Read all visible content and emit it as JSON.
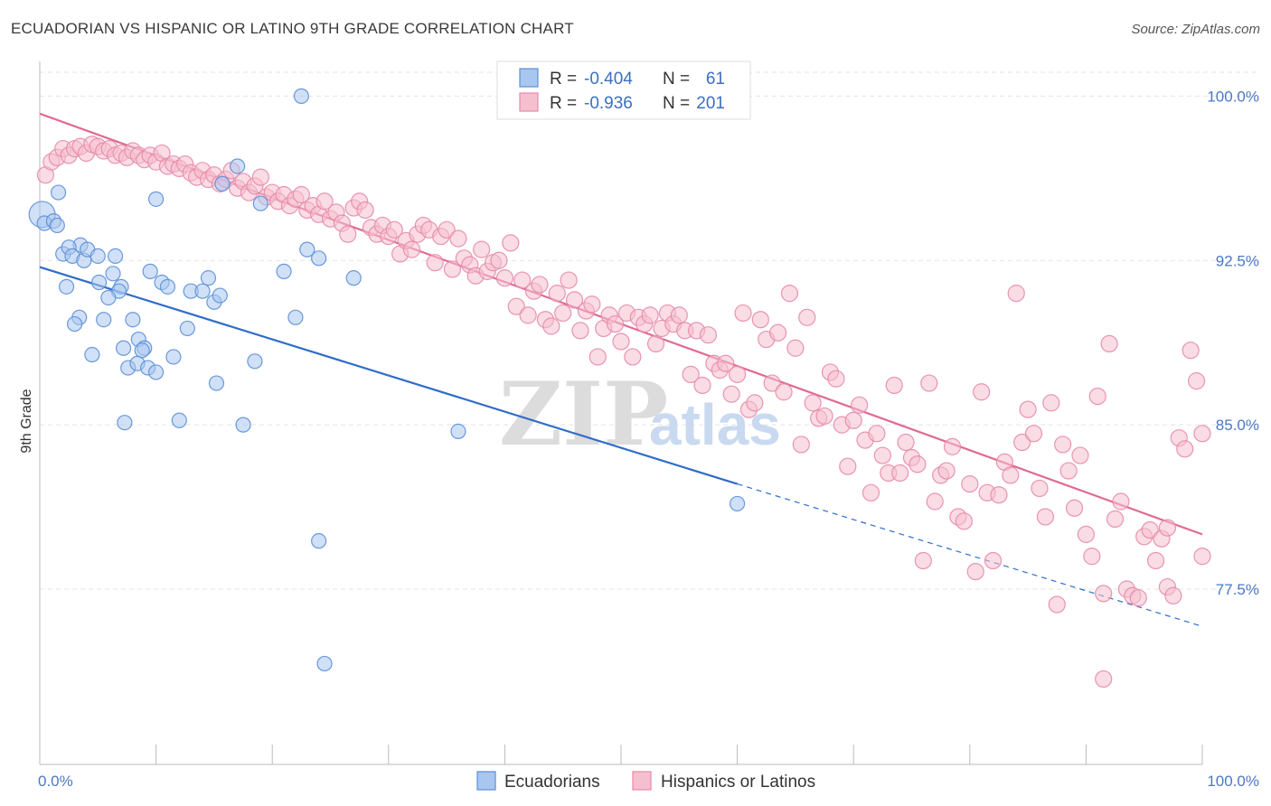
{
  "title": "ECUADORIAN VS HISPANIC OR LATINO 9TH GRADE CORRELATION CHART",
  "source": "Source: ZipAtlas.com",
  "watermark": {
    "zip": "ZIP",
    "atlas": "atlas"
  },
  "chart_data": {
    "type": "scatter",
    "title": "ECUADORIAN VS HISPANIC OR LATINO 9TH GRADE CORRELATION CHART",
    "ylabel": "9th Grade",
    "xlabel": "",
    "x_tick_labels": [
      "0.0%",
      "100.0%"
    ],
    "y_tick_labels": [
      "100.0%",
      "92.5%",
      "85.0%",
      "77.5%"
    ],
    "y_ticks": [
      100.0,
      92.5,
      85.0,
      77.5
    ],
    "xlim": [
      0,
      100
    ],
    "ylim": [
      69.5,
      101.5
    ],
    "grid": true,
    "legend_position": "top-center",
    "colors": {
      "ecuadorians": "#5b8fd6",
      "ecuadorians_fill": "#a9c6f0",
      "ecuadorians_line": "#2f6dc9",
      "hispanics": "#e68aa8",
      "hispanics_fill": "#f6bfd0",
      "hispanics_line": "#e06a94"
    },
    "legend": {
      "rows": [
        {
          "r_label": "R =",
          "r_value": "-0.404",
          "n_label": "N =",
          "n_value": "61"
        },
        {
          "r_label": "R =",
          "r_value": "-0.936",
          "n_label": "N =",
          "n_value": "201"
        }
      ]
    },
    "series": [
      {
        "name": "Ecuadorians",
        "trend": {
          "x0": 0,
          "y0": 92.2,
          "x1": 60,
          "y1": 82.3,
          "dash_to_x": 100,
          "dash_to_y": 75.8
        },
        "points": [
          [
            0.2,
            94.6
          ],
          [
            0.4,
            94.2
          ],
          [
            1.2,
            94.3
          ],
          [
            1.5,
            94.1
          ],
          [
            3.5,
            93.2
          ],
          [
            2.0,
            92.8
          ],
          [
            2.5,
            93.1
          ],
          [
            2.8,
            92.7
          ],
          [
            3.8,
            92.5
          ],
          [
            4.1,
            93.0
          ],
          [
            5.0,
            92.7
          ],
          [
            6.5,
            92.7
          ],
          [
            2.3,
            91.3
          ],
          [
            5.1,
            91.5
          ],
          [
            6.3,
            91.9
          ],
          [
            7.0,
            91.3
          ],
          [
            9.5,
            92.0
          ],
          [
            10.5,
            91.5
          ],
          [
            11.0,
            91.3
          ],
          [
            13.0,
            91.1
          ],
          [
            14.0,
            91.1
          ],
          [
            14.5,
            91.7
          ],
          [
            15.0,
            90.6
          ],
          [
            15.5,
            90.9
          ],
          [
            3.4,
            89.9
          ],
          [
            3.0,
            89.6
          ],
          [
            5.5,
            89.8
          ],
          [
            7.2,
            88.5
          ],
          [
            8.0,
            89.8
          ],
          [
            8.5,
            88.9
          ],
          [
            9.0,
            88.5
          ],
          [
            12.7,
            89.4
          ],
          [
            4.5,
            88.2
          ],
          [
            7.6,
            87.6
          ],
          [
            8.4,
            87.8
          ],
          [
            9.3,
            87.6
          ],
          [
            10.0,
            87.4
          ],
          [
            11.5,
            88.1
          ],
          [
            18.5,
            87.9
          ],
          [
            15.2,
            86.9
          ],
          [
            7.3,
            85.1
          ],
          [
            12.0,
            85.2
          ],
          [
            17.5,
            85.0
          ],
          [
            19.0,
            95.1
          ],
          [
            17.0,
            96.8
          ],
          [
            22.5,
            100.0
          ],
          [
            15.7,
            96.0
          ],
          [
            10.0,
            95.3
          ],
          [
            22.0,
            89.9
          ],
          [
            24.0,
            92.6
          ],
          [
            23.0,
            93.0
          ],
          [
            21.0,
            92.0
          ],
          [
            27.0,
            91.7
          ],
          [
            36.0,
            84.7
          ],
          [
            60.0,
            81.4
          ],
          [
            24.0,
            79.7
          ],
          [
            24.5,
            74.1
          ],
          [
            8.8,
            88.4
          ],
          [
            6.8,
            91.1
          ],
          [
            5.9,
            90.8
          ],
          [
            1.6,
            95.6
          ]
        ],
        "sizes": {
          "0": 1.8
        }
      },
      {
        "name": "Hispanics or Latinos",
        "trend": {
          "x0": 0,
          "y0": 99.2,
          "x1": 100,
          "y1": 80.0
        },
        "points": [
          [
            0.5,
            96.4
          ],
          [
            1.0,
            97.0
          ],
          [
            1.5,
            97.2
          ],
          [
            2.0,
            97.6
          ],
          [
            2.5,
            97.3
          ],
          [
            3.0,
            97.6
          ],
          [
            3.5,
            97.7
          ],
          [
            4.0,
            97.4
          ],
          [
            4.5,
            97.8
          ],
          [
            5.0,
            97.7
          ],
          [
            5.5,
            97.5
          ],
          [
            6.0,
            97.6
          ],
          [
            6.5,
            97.3
          ],
          [
            7.0,
            97.4
          ],
          [
            7.5,
            97.2
          ],
          [
            8.0,
            97.5
          ],
          [
            8.5,
            97.3
          ],
          [
            9.0,
            97.1
          ],
          [
            9.5,
            97.3
          ],
          [
            10.0,
            97.0
          ],
          [
            10.5,
            97.4
          ],
          [
            11.0,
            96.8
          ],
          [
            11.5,
            96.9
          ],
          [
            12.0,
            96.7
          ],
          [
            12.5,
            96.9
          ],
          [
            13.0,
            96.5
          ],
          [
            13.5,
            96.3
          ],
          [
            14.0,
            96.6
          ],
          [
            14.5,
            96.2
          ],
          [
            15.0,
            96.4
          ],
          [
            15.5,
            96.0
          ],
          [
            16.0,
            96.2
          ],
          [
            16.5,
            96.6
          ],
          [
            17.0,
            95.8
          ],
          [
            17.5,
            96.1
          ],
          [
            18.0,
            95.6
          ],
          [
            18.5,
            95.9
          ],
          [
            19.0,
            96.3
          ],
          [
            19.5,
            95.4
          ],
          [
            20.0,
            95.6
          ],
          [
            20.5,
            95.2
          ],
          [
            21.0,
            95.5
          ],
          [
            21.5,
            95.0
          ],
          [
            22.0,
            95.3
          ],
          [
            22.5,
            95.5
          ],
          [
            23.0,
            94.8
          ],
          [
            23.5,
            95.0
          ],
          [
            24.0,
            94.6
          ],
          [
            24.5,
            95.2
          ],
          [
            25.0,
            94.4
          ],
          [
            25.5,
            94.7
          ],
          [
            26.0,
            94.2
          ],
          [
            26.5,
            93.7
          ],
          [
            27.0,
            94.9
          ],
          [
            27.5,
            95.2
          ],
          [
            28.0,
            94.8
          ],
          [
            28.5,
            94.0
          ],
          [
            29.0,
            93.7
          ],
          [
            29.5,
            94.1
          ],
          [
            30.0,
            93.6
          ],
          [
            30.5,
            93.9
          ],
          [
            31.0,
            92.8
          ],
          [
            31.5,
            93.4
          ],
          [
            32.0,
            93.0
          ],
          [
            32.5,
            93.7
          ],
          [
            33.0,
            94.1
          ],
          [
            33.5,
            93.9
          ],
          [
            34.0,
            92.4
          ],
          [
            34.5,
            93.6
          ],
          [
            35.0,
            93.9
          ],
          [
            35.5,
            92.1
          ],
          [
            36.0,
            93.5
          ],
          [
            36.5,
            92.6
          ],
          [
            37.0,
            92.3
          ],
          [
            37.5,
            91.8
          ],
          [
            38.0,
            93.0
          ],
          [
            38.5,
            92.0
          ],
          [
            39.0,
            92.4
          ],
          [
            39.5,
            92.5
          ],
          [
            40.0,
            91.7
          ],
          [
            40.5,
            93.3
          ],
          [
            41.0,
            90.4
          ],
          [
            41.5,
            91.6
          ],
          [
            42.0,
            90.0
          ],
          [
            42.5,
            91.1
          ],
          [
            43.0,
            91.4
          ],
          [
            43.5,
            89.8
          ],
          [
            44.0,
            89.5
          ],
          [
            44.5,
            91.0
          ],
          [
            45.0,
            90.1
          ],
          [
            45.5,
            91.6
          ],
          [
            46.0,
            90.7
          ],
          [
            46.5,
            89.3
          ],
          [
            47.0,
            90.2
          ],
          [
            47.5,
            90.5
          ],
          [
            48.0,
            88.1
          ],
          [
            48.5,
            89.4
          ],
          [
            49.0,
            90.0
          ],
          [
            49.5,
            89.6
          ],
          [
            50.0,
            88.8
          ],
          [
            50.5,
            90.1
          ],
          [
            51.0,
            88.1
          ],
          [
            51.5,
            89.9
          ],
          [
            52.0,
            89.6
          ],
          [
            52.5,
            90.0
          ],
          [
            53.0,
            88.7
          ],
          [
            53.5,
            89.4
          ],
          [
            54.0,
            90.1
          ],
          [
            54.5,
            89.6
          ],
          [
            55.0,
            90.0
          ],
          [
            55.5,
            89.3
          ],
          [
            56.0,
            87.3
          ],
          [
            56.5,
            89.3
          ],
          [
            57.0,
            86.8
          ],
          [
            57.5,
            89.1
          ],
          [
            58.0,
            87.8
          ],
          [
            58.5,
            87.5
          ],
          [
            59.0,
            87.8
          ],
          [
            59.5,
            86.4
          ],
          [
            60.0,
            87.3
          ],
          [
            60.5,
            90.1
          ],
          [
            61.0,
            85.7
          ],
          [
            61.5,
            86.0
          ],
          [
            62.0,
            89.8
          ],
          [
            62.5,
            88.9
          ],
          [
            63.0,
            86.9
          ],
          [
            63.5,
            89.2
          ],
          [
            64.0,
            86.5
          ],
          [
            64.5,
            91.0
          ],
          [
            65.0,
            88.5
          ],
          [
            65.5,
            84.1
          ],
          [
            66.0,
            89.9
          ],
          [
            66.5,
            86.0
          ],
          [
            67.0,
            85.3
          ],
          [
            67.5,
            85.4
          ],
          [
            68.0,
            87.4
          ],
          [
            68.5,
            87.1
          ],
          [
            69.0,
            85.0
          ],
          [
            69.5,
            83.1
          ],
          [
            70.0,
            85.2
          ],
          [
            70.5,
            85.9
          ],
          [
            71.0,
            84.3
          ],
          [
            71.5,
            81.9
          ],
          [
            72.0,
            84.6
          ],
          [
            72.5,
            83.6
          ],
          [
            73.0,
            82.8
          ],
          [
            73.5,
            86.8
          ],
          [
            74.0,
            82.8
          ],
          [
            74.5,
            84.2
          ],
          [
            75.0,
            83.5
          ],
          [
            75.5,
            83.2
          ],
          [
            76.0,
            78.8
          ],
          [
            76.5,
            86.9
          ],
          [
            77.0,
            81.5
          ],
          [
            77.5,
            82.7
          ],
          [
            78.0,
            82.9
          ],
          [
            78.5,
            84.0
          ],
          [
            79.0,
            80.8
          ],
          [
            79.5,
            80.6
          ],
          [
            80.0,
            82.3
          ],
          [
            80.5,
            78.3
          ],
          [
            81.0,
            86.5
          ],
          [
            81.5,
            81.9
          ],
          [
            82.0,
            78.8
          ],
          [
            82.5,
            81.8
          ],
          [
            83.0,
            83.3
          ],
          [
            83.5,
            82.7
          ],
          [
            84.0,
            91.0
          ],
          [
            84.5,
            84.2
          ],
          [
            85.0,
            85.7
          ],
          [
            85.5,
            84.6
          ],
          [
            86.0,
            82.1
          ],
          [
            86.5,
            80.8
          ],
          [
            87.0,
            86.0
          ],
          [
            87.5,
            76.8
          ],
          [
            88.0,
            84.1
          ],
          [
            88.5,
            82.9
          ],
          [
            89.0,
            81.2
          ],
          [
            89.5,
            83.6
          ],
          [
            90.0,
            80.0
          ],
          [
            90.5,
            79.0
          ],
          [
            91.0,
            86.3
          ],
          [
            91.5,
            77.3
          ],
          [
            92.0,
            88.7
          ],
          [
            92.5,
            80.7
          ],
          [
            93.0,
            81.5
          ],
          [
            93.5,
            77.5
          ],
          [
            94.0,
            77.2
          ],
          [
            94.5,
            77.1
          ],
          [
            95.0,
            79.9
          ],
          [
            95.5,
            80.2
          ],
          [
            96.0,
            78.8
          ],
          [
            96.5,
            79.8
          ],
          [
            97.0,
            77.6
          ],
          [
            97.5,
            77.2
          ],
          [
            98.0,
            84.4
          ],
          [
            98.5,
            83.9
          ],
          [
            99.0,
            88.4
          ],
          [
            99.5,
            87.0
          ],
          [
            100.0,
            84.6
          ],
          [
            100.0,
            79.0
          ],
          [
            91.5,
            73.4
          ],
          [
            97.0,
            80.3
          ]
        ]
      }
    ]
  },
  "bottom_legend": {
    "items": [
      "Ecuadorians",
      "Hispanics or Latinos"
    ]
  }
}
